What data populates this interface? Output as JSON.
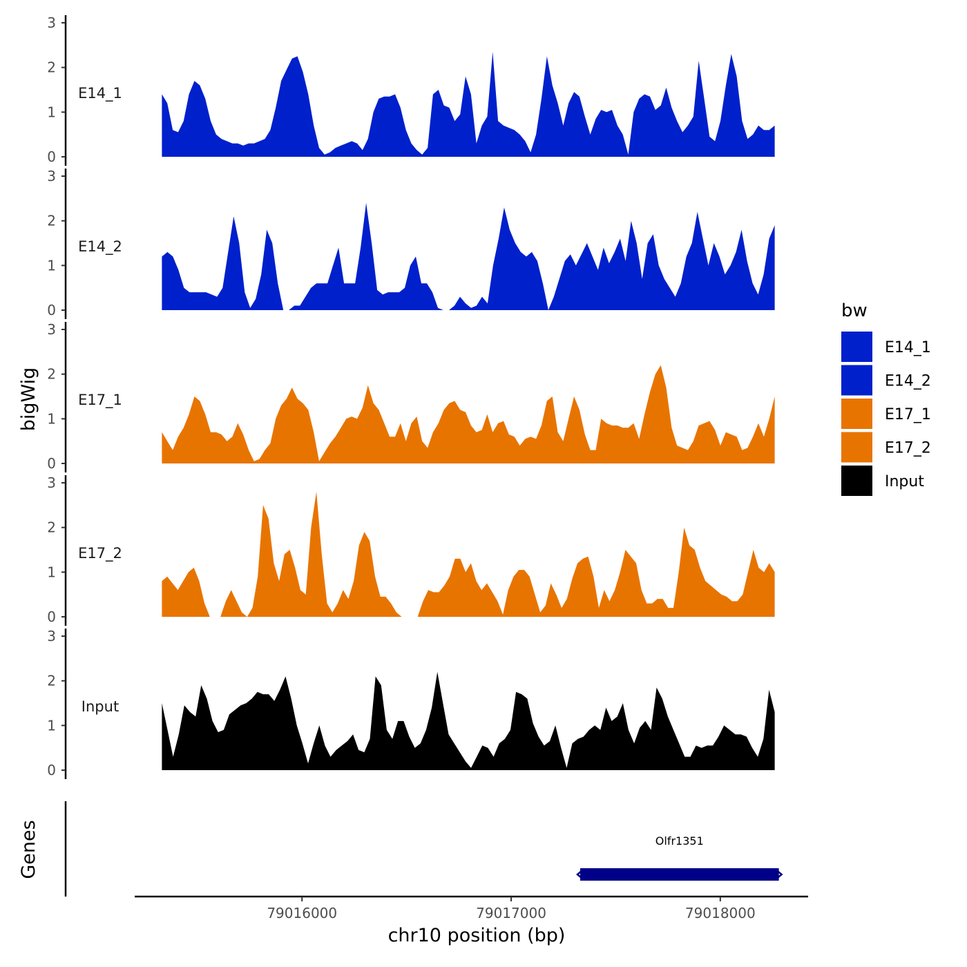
{
  "chart_data": {
    "type": "area",
    "title": "",
    "xlabel": "chr10 position (bp)",
    "ylabel": "bigWig",
    "genes_label": "Genes",
    "xlim": [
      79015200,
      79018420
    ],
    "xlim_data": [
      79015330,
      79018260
    ],
    "x_ticks": [
      79016000,
      79017000,
      79018000
    ],
    "x_tick_labels": [
      "79016000",
      "79017000",
      "79018000"
    ],
    "ylim": [
      0,
      3
    ],
    "y_ticks": [
      0,
      1,
      2,
      3
    ],
    "y_tick_labels": [
      "0",
      "1",
      "2",
      "3"
    ],
    "legend": {
      "title": "bw",
      "position": "right",
      "items": [
        {
          "label": "E14_1",
          "color": "#0020CC"
        },
        {
          "label": "E14_2",
          "color": "#0020CC"
        },
        {
          "label": "E17_1",
          "color": "#E87400"
        },
        {
          "label": "E17_2",
          "color": "#E87400"
        },
        {
          "label": "Input",
          "color": "#000000"
        }
      ]
    },
    "series": [
      {
        "name": "E14_1",
        "color": "#0020CC",
        "values": [
          1.4,
          1.2,
          0.6,
          0.55,
          0.8,
          1.4,
          1.7,
          1.6,
          1.3,
          0.8,
          0.5,
          0.4,
          0.35,
          0.3,
          0.3,
          0.25,
          0.3,
          0.3,
          0.35,
          0.4,
          0.6,
          1.1,
          1.7,
          1.95,
          2.2,
          2.25,
          1.9,
          1.4,
          0.7,
          0.2,
          0.05,
          0.1,
          0.2,
          0.25,
          0.3,
          0.35,
          0.3,
          0.15,
          0.4,
          1.0,
          1.3,
          1.35,
          1.35,
          1.4,
          1.1,
          0.6,
          0.3,
          0.15,
          0.05,
          0.2,
          1.4,
          1.5,
          1.15,
          1.1,
          0.8,
          0.95,
          1.8,
          1.4,
          0.3,
          0.7,
          0.9,
          2.35,
          0.8,
          0.7,
          0.65,
          0.6,
          0.5,
          0.35,
          0.1,
          0.5,
          1.3,
          2.25,
          1.6,
          1.2,
          0.7,
          1.2,
          1.45,
          1.35,
          0.9,
          0.5,
          0.85,
          1.05,
          1.0,
          1.05,
          0.7,
          0.5,
          0.05,
          1.0,
          1.3,
          1.4,
          1.35,
          1.05,
          1.15,
          1.55,
          1.1,
          0.8,
          0.55,
          0.7,
          0.9,
          2.15,
          1.3,
          0.45,
          0.35,
          0.8,
          1.6,
          2.3,
          1.8,
          0.8,
          0.4,
          0.5,
          0.7,
          0.6,
          0.6,
          0.7
        ]
      },
      {
        "name": "E14_2",
        "color": "#0020CC",
        "values": [
          1.2,
          1.3,
          1.2,
          0.9,
          0.5,
          0.4,
          0.4,
          0.4,
          0.4,
          0.35,
          0.3,
          0.5,
          1.3,
          2.1,
          1.5,
          0.4,
          0.05,
          0.25,
          0.8,
          1.8,
          1.5,
          0.6,
          0.0,
          0.0,
          0.1,
          0.1,
          0.3,
          0.5,
          0.6,
          0.6,
          0.6,
          1.0,
          1.4,
          0.6,
          0.6,
          0.6,
          1.4,
          2.4,
          1.5,
          0.45,
          0.35,
          0.4,
          0.4,
          0.4,
          0.5,
          1.0,
          1.2,
          0.6,
          0.6,
          0.4,
          0.05,
          0.0,
          0.0,
          0.1,
          0.3,
          0.15,
          0.05,
          0.1,
          0.3,
          0.15,
          1.0,
          1.6,
          2.3,
          1.8,
          1.5,
          1.3,
          1.2,
          1.3,
          1.1,
          0.6,
          0.0,
          0.3,
          0.7,
          1.1,
          1.25,
          1.0,
          1.25,
          1.5,
          1.2,
          0.9,
          1.4,
          1.05,
          1.3,
          1.6,
          1.1,
          2.0,
          1.5,
          0.7,
          1.5,
          1.7,
          1.0,
          0.7,
          0.5,
          0.3,
          0.6,
          1.2,
          1.5,
          2.2,
          1.6,
          1.0,
          1.5,
          1.2,
          0.8,
          1.0,
          1.3,
          1.8,
          1.1,
          0.6,
          0.35,
          0.8,
          1.6,
          1.9
        ]
      },
      {
        "name": "E17_1",
        "color": "#E87400",
        "values": [
          0.7,
          0.5,
          0.3,
          0.6,
          0.8,
          1.1,
          1.5,
          1.4,
          1.1,
          0.7,
          0.7,
          0.65,
          0.5,
          0.6,
          0.9,
          0.65,
          0.3,
          0.05,
          0.1,
          0.3,
          0.45,
          1.0,
          1.3,
          1.45,
          1.7,
          1.45,
          1.35,
          1.2,
          0.7,
          0.05,
          0.25,
          0.45,
          0.6,
          0.8,
          1.0,
          1.05,
          1.0,
          1.25,
          1.75,
          1.35,
          1.2,
          0.9,
          0.6,
          0.6,
          0.9,
          0.5,
          0.9,
          1.05,
          0.5,
          0.35,
          0.7,
          0.9,
          1.2,
          1.35,
          1.4,
          1.2,
          1.15,
          0.85,
          0.7,
          0.75,
          1.1,
          0.7,
          0.9,
          0.95,
          0.65,
          0.6,
          0.4,
          0.55,
          0.6,
          0.55,
          0.85,
          1.4,
          1.5,
          0.7,
          0.5,
          1.0,
          1.5,
          1.2,
          0.65,
          0.3,
          0.3,
          1.0,
          0.9,
          0.85,
          0.85,
          0.8,
          0.8,
          0.9,
          0.55,
          1.1,
          1.6,
          2.0,
          2.2,
          1.7,
          0.8,
          0.4,
          0.35,
          0.3,
          0.5,
          0.85,
          0.9,
          0.95,
          0.75,
          0.4,
          0.7,
          0.65,
          0.6,
          0.3,
          0.35,
          0.6,
          0.9,
          0.6,
          1.0,
          1.5
        ]
      },
      {
        "name": "E17_2",
        "color": "#E87400",
        "values": [
          0.8,
          0.9,
          0.75,
          0.6,
          0.8,
          1.0,
          1.1,
          0.8,
          0.3,
          0.0,
          0.0,
          0.0,
          0.35,
          0.6,
          0.35,
          0.1,
          0.0,
          0.2,
          0.9,
          2.5,
          2.2,
          1.2,
          0.8,
          1.4,
          1.5,
          1.1,
          0.6,
          0.5,
          2.0,
          2.8,
          1.4,
          0.3,
          0.1,
          0.3,
          0.6,
          0.4,
          0.8,
          1.6,
          1.9,
          1.7,
          0.9,
          0.45,
          0.45,
          0.3,
          0.1,
          0.0,
          0.0,
          0.0,
          0.0,
          0.35,
          0.6,
          0.55,
          0.55,
          0.7,
          0.9,
          1.3,
          1.3,
          1.0,
          1.2,
          0.8,
          0.6,
          0.75,
          0.55,
          0.35,
          0.05,
          0.6,
          0.9,
          1.05,
          1.05,
          0.9,
          0.5,
          0.1,
          0.25,
          0.75,
          0.5,
          0.2,
          0.4,
          0.85,
          1.2,
          1.3,
          1.35,
          0.9,
          0.2,
          0.6,
          0.35,
          0.6,
          1.0,
          1.5,
          1.35,
          1.2,
          0.6,
          0.3,
          0.3,
          0.4,
          0.4,
          0.2,
          0.2,
          1.0,
          2.0,
          1.6,
          1.5,
          1.1,
          0.8,
          0.7,
          0.6,
          0.5,
          0.45,
          0.35,
          0.35,
          0.5,
          1.0,
          1.5,
          1.1,
          1.0,
          1.2,
          1.0
        ]
      },
      {
        "name": "Input",
        "color": "#000000",
        "values": [
          1.5,
          0.9,
          0.3,
          0.8,
          1.45,
          1.3,
          1.2,
          1.9,
          1.6,
          1.1,
          0.85,
          0.9,
          1.25,
          1.35,
          1.45,
          1.5,
          1.6,
          1.75,
          1.7,
          1.7,
          1.55,
          1.8,
          2.1,
          1.6,
          1.0,
          0.6,
          0.15,
          0.6,
          1.0,
          0.55,
          0.3,
          0.45,
          0.55,
          0.65,
          0.8,
          0.45,
          0.4,
          0.7,
          2.1,
          1.9,
          0.9,
          0.7,
          1.1,
          1.1,
          0.75,
          0.5,
          0.6,
          0.9,
          1.4,
          2.2,
          1.5,
          0.8,
          0.6,
          0.4,
          0.2,
          0.05,
          0.3,
          0.55,
          0.5,
          0.3,
          0.6,
          0.7,
          0.9,
          1.75,
          1.7,
          1.6,
          1.05,
          0.75,
          0.55,
          0.65,
          1.0,
          0.5,
          0.05,
          0.6,
          0.7,
          0.75,
          0.9,
          1.0,
          0.9,
          1.4,
          1.1,
          1.2,
          1.5,
          0.9,
          0.6,
          0.95,
          1.1,
          0.9,
          1.85,
          1.6,
          1.2,
          0.9,
          0.6,
          0.3,
          0.3,
          0.55,
          0.5,
          0.55,
          0.55,
          0.75,
          1.0,
          0.9,
          0.8,
          0.8,
          0.75,
          0.5,
          0.3,
          0.7,
          1.8,
          1.3
        ]
      }
    ],
    "genes": [
      {
        "name": "Olfr1351",
        "start": 79017330,
        "end": 79018280,
        "strand": "-",
        "color": "#000088"
      }
    ]
  }
}
